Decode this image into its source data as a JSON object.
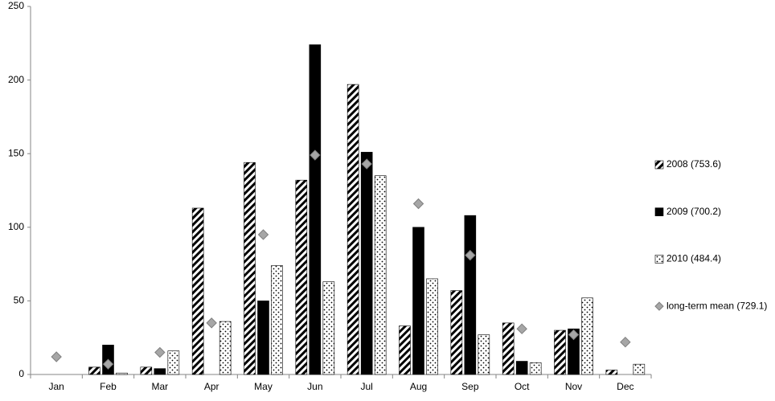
{
  "chart_data": {
    "type": "bar",
    "categories": [
      "Jan",
      "Feb",
      "Mar",
      "Apr",
      "May",
      "Jun",
      "Jul",
      "Aug",
      "Sep",
      "Oct",
      "Nov",
      "Dec"
    ],
    "series": [
      {
        "name": "2008 (753.6)",
        "color": "#000000",
        "pattern": "hatch",
        "values": [
          0,
          5,
          5,
          113,
          144,
          132,
          197,
          33,
          57,
          35,
          30,
          3
        ]
      },
      {
        "name": "2009 (700.2)",
        "color": "#000000",
        "pattern": "solid",
        "values": [
          0,
          20,
          4,
          0,
          50,
          224,
          151,
          100,
          108,
          9,
          31,
          0
        ]
      },
      {
        "name": "2010 (484.4)",
        "color": "#000000",
        "pattern": "dots",
        "values": [
          0,
          1,
          16,
          36,
          74,
          63,
          135,
          65,
          27,
          8,
          52,
          7
        ]
      },
      {
        "name": "long-term mean (729.1)",
        "color": "#a6a6a6",
        "marker": "diamond",
        "values": [
          12,
          7,
          15,
          35,
          95,
          149,
          143,
          116,
          81,
          31,
          27,
          22
        ]
      }
    ],
    "ylim": [
      0,
      250
    ],
    "yticks": [
      0,
      50,
      100,
      150,
      200,
      250
    ],
    "grid": false,
    "legend": "right"
  }
}
